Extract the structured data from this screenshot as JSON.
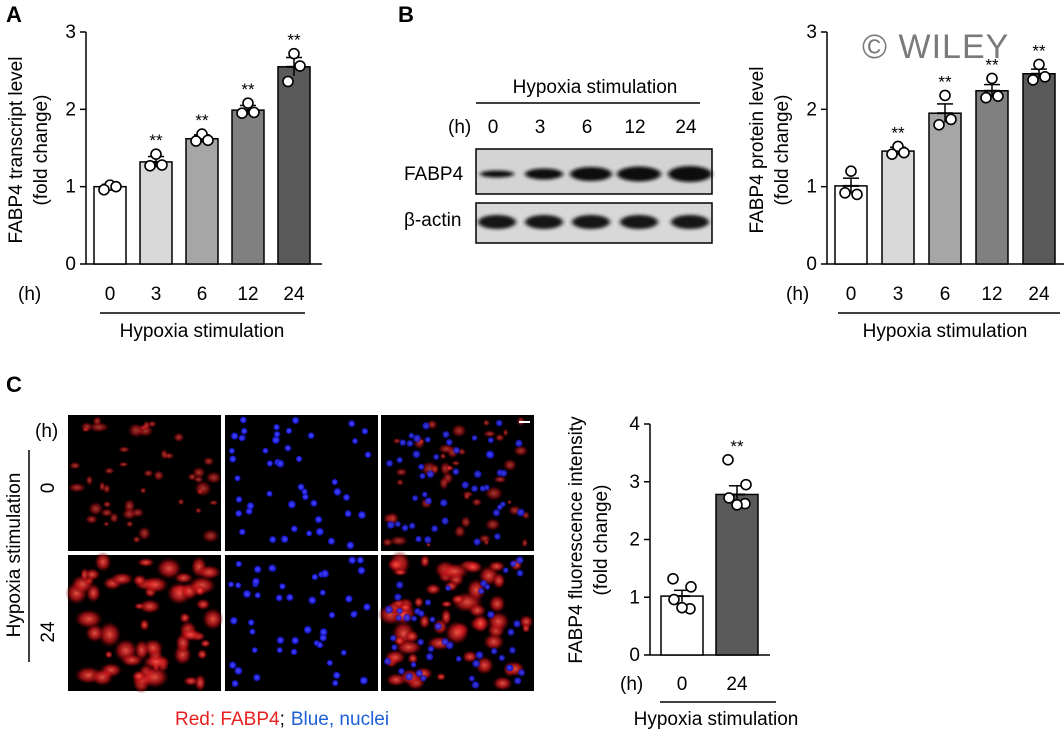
{
  "watermark": "© WILEY",
  "panels": {
    "A": {
      "letter": "A",
      "ylabel_line1": "FABP4 transcript level",
      "ylabel_line2": "(fold change)",
      "unit_label": "(h)",
      "xgroup_label": "Hypoxia stimulation"
    },
    "B": {
      "letter": "B",
      "blot_title": "Hypoxia stimulation",
      "unit_label": "(h)",
      "lanes": [
        "0",
        "3",
        "6",
        "12",
        "24"
      ],
      "rows": [
        "FABP4",
        "β-actin"
      ],
      "ylabel_line1": "FABP4 protein level",
      "ylabel_line2": "(fold change)",
      "chart_unit_label": "(h)",
      "xgroup_label": "Hypoxia stimulation"
    },
    "C": {
      "letter": "C",
      "unit_label": "(h)",
      "side_label": "Hypoxia stimulation",
      "row_labels": [
        "0",
        "24"
      ],
      "caption_red": "Red: FABP4",
      "caption_sep": ";",
      "caption_blue": "Blue, nuclei",
      "ylabel_line1": "FABP4 fluorescence intensity",
      "ylabel_line2": "(fold change)",
      "chart_unit_label": "(h)",
      "xgroup_label": "Hypoxia stimulation"
    }
  },
  "colors": {
    "bar_fills": [
      "#ffffff",
      "#d9d9d9",
      "#a6a6a6",
      "#808080",
      "#5a5a5a"
    ],
    "red_channel": "#e8211f",
    "blue_channel": "#1f5fd6"
  },
  "chart_data": [
    {
      "panel": "A",
      "type": "bar",
      "categories": [
        "0",
        "3",
        "6",
        "12",
        "24"
      ],
      "values": [
        1.0,
        1.32,
        1.62,
        1.99,
        2.55
      ],
      "errors": [
        0.03,
        0.07,
        0.05,
        0.06,
        0.12
      ],
      "points": [
        [
          1.02,
          0.96,
          1.0
        ],
        [
          1.42,
          1.27,
          1.28
        ],
        [
          1.68,
          1.59,
          1.6
        ],
        [
          2.08,
          1.95,
          1.96
        ],
        [
          2.72,
          2.36,
          2.56
        ]
      ],
      "significance": [
        "",
        "**",
        "**",
        "**",
        "**"
      ],
      "ylim": [
        0,
        3
      ],
      "yticks": [
        0,
        1,
        2,
        3
      ]
    },
    {
      "panel": "B",
      "type": "bar",
      "categories": [
        "0",
        "3",
        "6",
        "12",
        "24"
      ],
      "values": [
        1.01,
        1.46,
        1.95,
        2.24,
        2.46
      ],
      "errors": [
        0.1,
        0.05,
        0.12,
        0.08,
        0.06
      ],
      "points": [
        [
          1.2,
          0.92,
          0.9
        ],
        [
          1.52,
          1.42,
          1.44
        ],
        [
          2.18,
          1.8,
          1.87
        ],
        [
          2.4,
          2.15,
          2.17
        ],
        [
          2.58,
          2.38,
          2.42
        ]
      ],
      "significance": [
        "",
        "**",
        "**",
        "**",
        "**"
      ],
      "ylim": [
        0,
        3
      ],
      "yticks": [
        0,
        1,
        2,
        3
      ]
    },
    {
      "panel": "C",
      "type": "bar",
      "categories": [
        "0",
        "24"
      ],
      "values": [
        1.02,
        2.78
      ],
      "errors": [
        0.1,
        0.15
      ],
      "points": [
        [
          1.32,
          1.18,
          0.96,
          0.8,
          0.82
        ],
        [
          3.38,
          2.95,
          2.72,
          2.62,
          2.6
        ]
      ],
      "significance": [
        "",
        "**"
      ],
      "ylim": [
        0,
        4
      ],
      "yticks": [
        0,
        1,
        2,
        3,
        4
      ]
    }
  ]
}
